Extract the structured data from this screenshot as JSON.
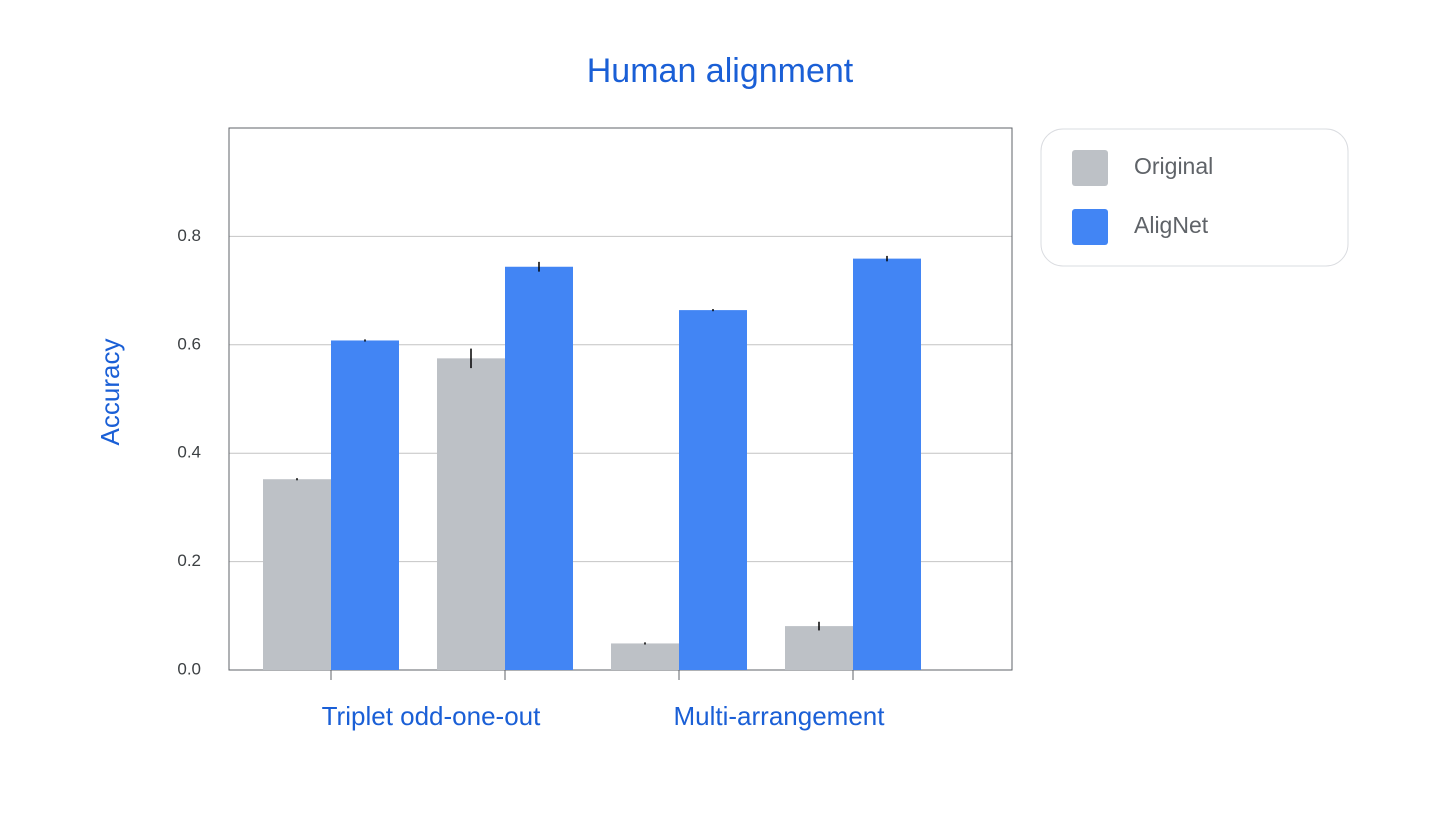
{
  "chart_data": {
    "type": "bar",
    "title": "Human alignment",
    "y_label": "Accuracy",
    "categories": [
      null,
      null,
      null,
      null
    ],
    "group_labels": [
      "Triplet odd-one-out",
      "Multi-arrangement"
    ],
    "series": [
      {
        "name": "Original",
        "color": "#bdc1c6",
        "values": [
          0.352,
          0.575,
          0.049,
          0.081
        ],
        "errors": [
          0.002,
          0.018,
          0.002,
          0.008
        ]
      },
      {
        "name": "AligNet",
        "color": "#4285f4",
        "values": [
          0.608,
          0.744,
          0.664,
          0.759
        ],
        "errors": [
          0.002,
          0.009,
          0.002,
          0.005
        ]
      }
    ],
    "ylim": [
      0,
      1.0
    ],
    "yticks": [
      {
        "value": 0,
        "label": "0.0"
      },
      0.2,
      0.4,
      0.6,
      0.8
    ],
    "grid": true,
    "legend": "right"
  }
}
